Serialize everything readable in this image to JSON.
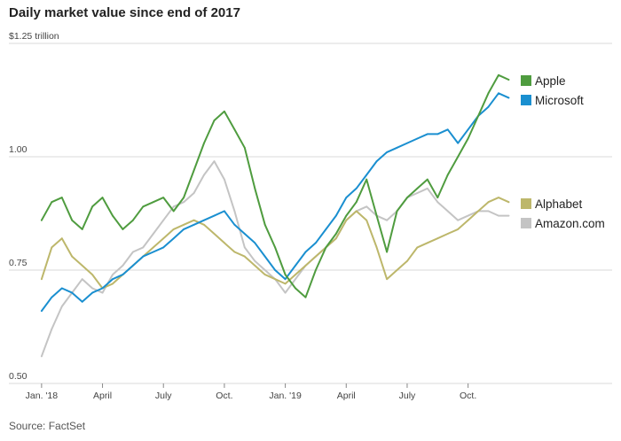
{
  "title": "Daily market value since end of 2017",
  "source": "Source: FactSet",
  "chart_data": {
    "type": "line",
    "title": "Daily market value since end of 2017",
    "ylabel": "$1.25 trillion",
    "ylim": [
      0.5,
      1.25
    ],
    "y_ticks": [
      {
        "value": 1.25,
        "label": "$1.25 trillion"
      },
      {
        "value": 1.0,
        "label": "1.00"
      },
      {
        "value": 0.75,
        "label": "0.75"
      },
      {
        "value": 0.5,
        "label": "0.50"
      }
    ],
    "x_ticks": [
      {
        "value": 0,
        "label": "Jan. '18"
      },
      {
        "value": 3,
        "label": "April"
      },
      {
        "value": 6,
        "label": "July"
      },
      {
        "value": 9,
        "label": "Oct."
      },
      {
        "value": 12,
        "label": "Jan. '19"
      },
      {
        "value": 15,
        "label": "April"
      },
      {
        "value": 18,
        "label": "July"
      },
      {
        "value": 21,
        "label": "Oct."
      }
    ],
    "x_unit": "months since end of 2017",
    "xlim": [
      -0.3,
      23.2
    ],
    "grid": true,
    "legend_position": "right",
    "series": [
      {
        "name": "Apple",
        "color": "#4f9c3f",
        "x": [
          0,
          0.5,
          1,
          1.5,
          2,
          2.5,
          3,
          3.5,
          4,
          4.5,
          5,
          5.5,
          6,
          6.5,
          7,
          7.5,
          8,
          8.5,
          9,
          9.5,
          10,
          10.5,
          11,
          11.5,
          12,
          12.5,
          13,
          13.5,
          14,
          14.5,
          15,
          15.5,
          16,
          16.5,
          17,
          17.5,
          18,
          18.5,
          19,
          19.5,
          20,
          20.5,
          21,
          21.5,
          22,
          22.5,
          23
        ],
        "values": [
          0.86,
          0.9,
          0.91,
          0.86,
          0.84,
          0.89,
          0.91,
          0.87,
          0.84,
          0.86,
          0.89,
          0.9,
          0.91,
          0.88,
          0.91,
          0.97,
          1.03,
          1.08,
          1.1,
          1.06,
          1.02,
          0.93,
          0.85,
          0.8,
          0.74,
          0.71,
          0.69,
          0.75,
          0.8,
          0.83,
          0.87,
          0.9,
          0.95,
          0.87,
          0.79,
          0.88,
          0.91,
          0.93,
          0.95,
          0.91,
          0.96,
          1.0,
          1.04,
          1.09,
          1.14,
          1.18,
          1.17
        ]
      },
      {
        "name": "Microsoft",
        "color": "#1a8fd0",
        "x": [
          0,
          0.5,
          1,
          1.5,
          2,
          2.5,
          3,
          3.5,
          4,
          4.5,
          5,
          5.5,
          6,
          6.5,
          7,
          7.5,
          8,
          8.5,
          9,
          9.5,
          10,
          10.5,
          11,
          11.5,
          12,
          12.5,
          13,
          13.5,
          14,
          14.5,
          15,
          15.5,
          16,
          16.5,
          17,
          17.5,
          18,
          18.5,
          19,
          19.5,
          20,
          20.5,
          21,
          21.5,
          22,
          22.5,
          23
        ],
        "values": [
          0.66,
          0.69,
          0.71,
          0.7,
          0.68,
          0.7,
          0.71,
          0.73,
          0.74,
          0.76,
          0.78,
          0.79,
          0.8,
          0.82,
          0.84,
          0.85,
          0.86,
          0.87,
          0.88,
          0.85,
          0.83,
          0.81,
          0.78,
          0.75,
          0.73,
          0.76,
          0.79,
          0.81,
          0.84,
          0.87,
          0.91,
          0.93,
          0.96,
          0.99,
          1.01,
          1.02,
          1.03,
          1.04,
          1.05,
          1.05,
          1.06,
          1.03,
          1.06,
          1.09,
          1.11,
          1.14,
          1.13
        ]
      },
      {
        "name": "Alphabet",
        "color": "#bdb76b",
        "x": [
          0,
          0.5,
          1,
          1.5,
          2,
          2.5,
          3,
          3.5,
          4,
          4.5,
          5,
          5.5,
          6,
          6.5,
          7,
          7.5,
          8,
          8.5,
          9,
          9.5,
          10,
          10.5,
          11,
          11.5,
          12,
          12.5,
          13,
          13.5,
          14,
          14.5,
          15,
          15.5,
          16,
          16.5,
          17,
          17.5,
          18,
          18.5,
          19,
          19.5,
          20,
          20.5,
          21,
          21.5,
          22,
          22.5,
          23
        ],
        "values": [
          0.73,
          0.8,
          0.82,
          0.78,
          0.76,
          0.74,
          0.71,
          0.72,
          0.74,
          0.76,
          0.78,
          0.8,
          0.82,
          0.84,
          0.85,
          0.86,
          0.85,
          0.83,
          0.81,
          0.79,
          0.78,
          0.76,
          0.74,
          0.73,
          0.72,
          0.74,
          0.76,
          0.78,
          0.8,
          0.82,
          0.86,
          0.88,
          0.86,
          0.8,
          0.73,
          0.75,
          0.77,
          0.8,
          0.81,
          0.82,
          0.83,
          0.84,
          0.86,
          0.88,
          0.9,
          0.91,
          0.9
        ]
      },
      {
        "name": "Amazon.com",
        "color": "#c4c4c4",
        "x": [
          0,
          0.5,
          1,
          1.5,
          2,
          2.5,
          3,
          3.5,
          4,
          4.5,
          5,
          5.5,
          6,
          6.5,
          7,
          7.5,
          8,
          8.5,
          9,
          9.5,
          10,
          10.5,
          11,
          11.5,
          12,
          12.5,
          13,
          13.5,
          14,
          14.5,
          15,
          15.5,
          16,
          16.5,
          17,
          17.5,
          18,
          18.5,
          19,
          19.5,
          20,
          20.5,
          21,
          21.5,
          22,
          22.5,
          23
        ],
        "values": [
          0.56,
          0.62,
          0.67,
          0.7,
          0.73,
          0.71,
          0.7,
          0.74,
          0.76,
          0.79,
          0.8,
          0.83,
          0.86,
          0.89,
          0.9,
          0.92,
          0.96,
          0.99,
          0.95,
          0.88,
          0.8,
          0.77,
          0.75,
          0.73,
          0.7,
          0.73,
          0.76,
          0.78,
          0.8,
          0.82,
          0.86,
          0.88,
          0.89,
          0.87,
          0.86,
          0.88,
          0.91,
          0.92,
          0.93,
          0.9,
          0.88,
          0.86,
          0.87,
          0.88,
          0.88,
          0.87,
          0.87
        ]
      }
    ]
  }
}
